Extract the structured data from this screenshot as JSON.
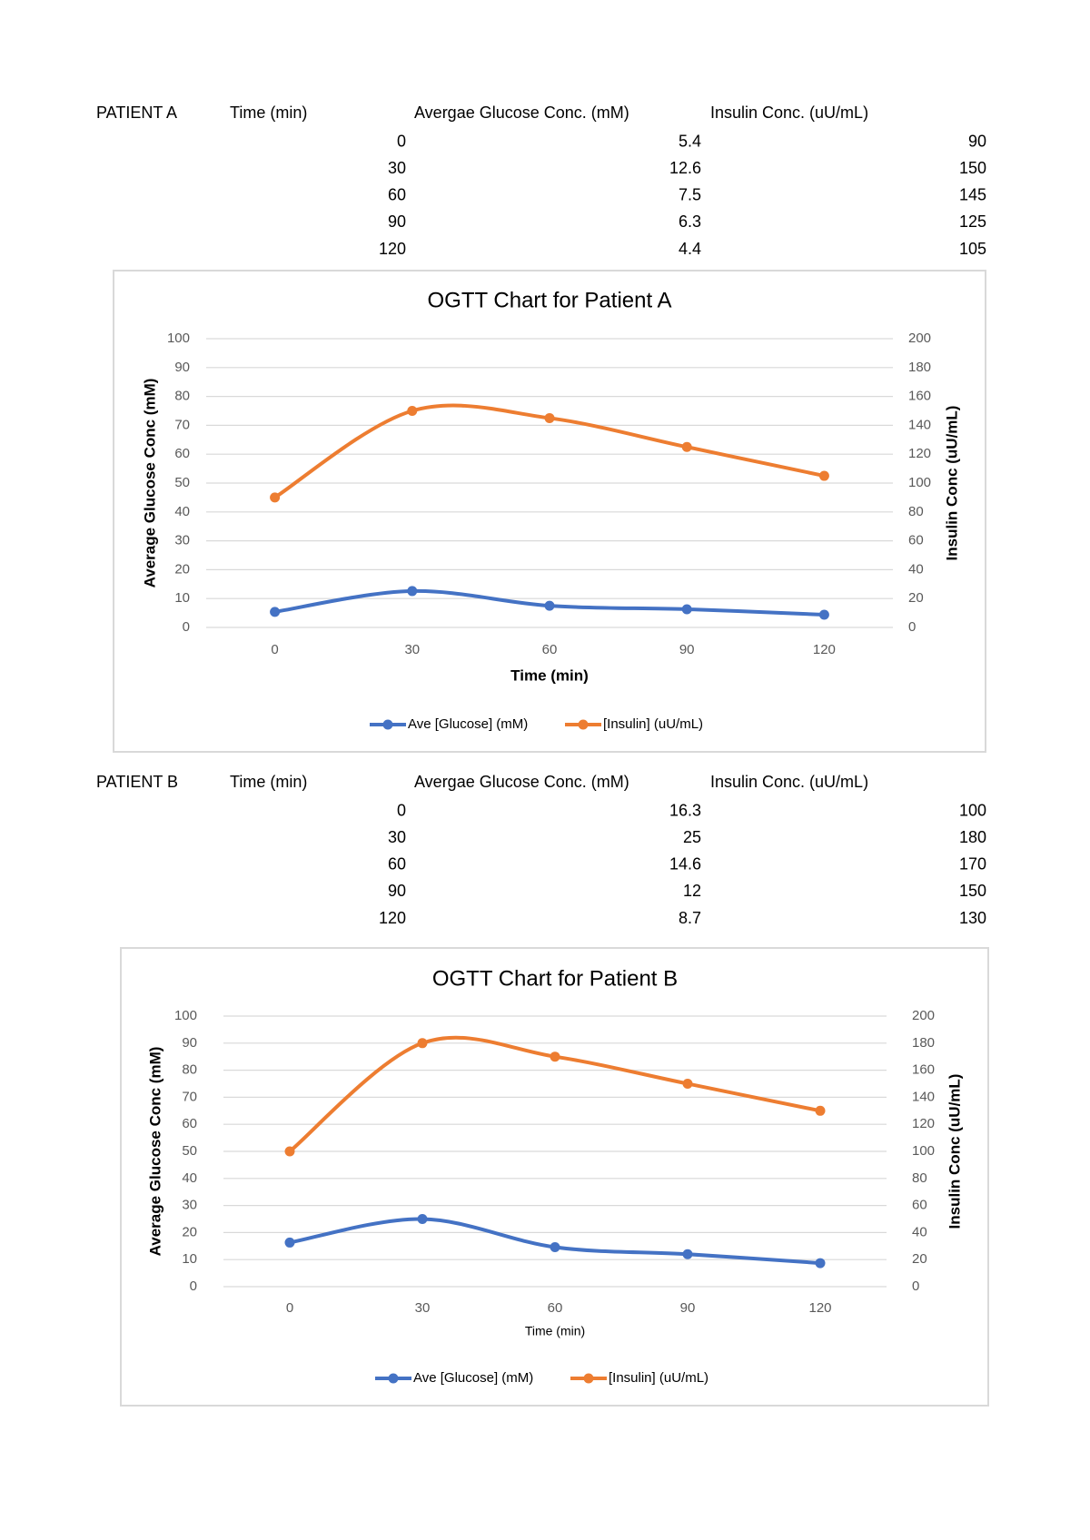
{
  "tables": [
    {
      "label": "PATIENT A",
      "headers": [
        "Time (min)",
        "Avergae Glucose Conc. (mM)",
        "Insulin Conc. (uU/mL)"
      ],
      "rows": [
        [
          0,
          5.4,
          90
        ],
        [
          30,
          12.6,
          150
        ],
        [
          60,
          7.5,
          145
        ],
        [
          90,
          6.3,
          125
        ],
        [
          120,
          4.4,
          105
        ]
      ]
    },
    {
      "label": "PATIENT B",
      "headers": [
        "Time (min)",
        "Avergae Glucose Conc. (mM)",
        "Insulin Conc. (uU/mL)"
      ],
      "rows": [
        [
          0,
          16.3,
          100
        ],
        [
          30,
          25,
          180
        ],
        [
          60,
          14.6,
          170
        ],
        [
          90,
          12,
          150
        ],
        [
          120,
          8.7,
          130
        ]
      ]
    }
  ],
  "chart_data": [
    {
      "type": "line",
      "title": "OGTT Chart for Patient A",
      "xlabel": "Time (min)",
      "ylabel": "Average Glucose Conc (mM)",
      "y2label": "Insulin Conc (uU/mL)",
      "x": [
        0,
        30,
        60,
        90,
        120
      ],
      "xlim": [
        -15,
        135
      ],
      "xticks": [
        0,
        30,
        60,
        90,
        120
      ],
      "ylim": [
        0,
        100
      ],
      "yticks": [
        0,
        10,
        20,
        30,
        40,
        50,
        60,
        70,
        80,
        90,
        100
      ],
      "y2lim": [
        0,
        200
      ],
      "y2ticks": [
        0,
        20,
        40,
        60,
        80,
        100,
        120,
        140,
        160,
        180,
        200
      ],
      "grid": true,
      "legend": "bottom",
      "series": [
        {
          "name": "Ave [Glucose] (mM)",
          "color": "#4472c4",
          "values": [
            5.4,
            12.6,
            7.5,
            6.3,
            4.4
          ]
        },
        {
          "name": "[Insulin] (uU/mL)",
          "color": "#ed7d31",
          "axis": "y2",
          "values": [
            90,
            150,
            145,
            125,
            105
          ]
        }
      ]
    },
    {
      "type": "line",
      "title": "OGTT Chart for Patient B",
      "xlabel": "Time (min)",
      "ylabel": "Average Glucose Conc (mM)",
      "y2label": "Insulin Conc (uU/mL)",
      "x": [
        0,
        30,
        60,
        90,
        120
      ],
      "xlim": [
        -15,
        135
      ],
      "xticks": [
        0,
        30,
        60,
        90,
        120
      ],
      "ylim": [
        0,
        100
      ],
      "yticks": [
        0,
        10,
        20,
        30,
        40,
        50,
        60,
        70,
        80,
        90,
        100
      ],
      "y2lim": [
        0,
        200
      ],
      "y2ticks": [
        0,
        20,
        40,
        60,
        80,
        100,
        120,
        140,
        160,
        180,
        200
      ],
      "grid": true,
      "legend": "bottom",
      "series": [
        {
          "name": "Ave [Glucose] (mM)",
          "color": "#4472c4",
          "values": [
            16.3,
            25,
            14.6,
            12,
            8.7
          ]
        },
        {
          "name": "[Insulin] (uU/mL)",
          "color": "#ed7d31",
          "axis": "y2",
          "values": [
            100,
            180,
            170,
            150,
            130
          ]
        }
      ]
    }
  ]
}
